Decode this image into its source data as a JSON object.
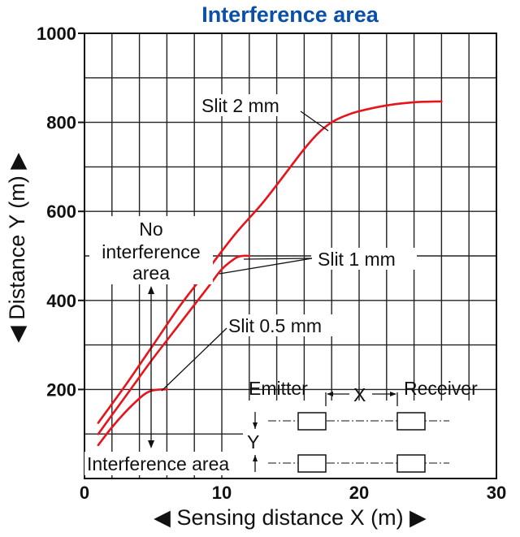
{
  "chart_data": {
    "type": "line",
    "title": "Interference area",
    "xlabel": "◀ Sensing distance X (m) ▶",
    "ylabel": "◀ Distance Y (m) ▶",
    "xlim": [
      0,
      30
    ],
    "ylim": [
      0,
      1000
    ],
    "xticks": [
      0,
      10,
      20,
      30
    ],
    "yticks": [
      200,
      400,
      600,
      800,
      1000
    ],
    "grid": true,
    "series": [
      {
        "name": "Slit 2 mm",
        "x": [
          1,
          3,
          5,
          7,
          9,
          11,
          13,
          15,
          16,
          17,
          18,
          19,
          20,
          22,
          24,
          26
        ],
        "y": [
          125,
          210,
          300,
          390,
          470,
          550,
          620,
          700,
          740,
          775,
          800,
          815,
          825,
          838,
          845,
          847
        ]
      },
      {
        "name": "Slit 1 mm",
        "x": [
          1,
          3,
          5,
          7,
          9,
          10,
          11,
          11.5,
          12
        ],
        "y": [
          100,
          185,
          270,
          350,
          430,
          470,
          495,
          500,
          500
        ]
      },
      {
        "name": "Slit 0.5 mm",
        "x": [
          1,
          2,
          3,
          4,
          4.5,
          5,
          5.5,
          6
        ],
        "y": [
          75,
          115,
          150,
          180,
          192,
          198,
          200,
          200
        ]
      }
    ],
    "annotations": {
      "no_interference": [
        "No",
        "interference",
        "area"
      ],
      "interference": "Interference area",
      "inset": {
        "emitter": "Emitter",
        "receiver": "Receiver",
        "x": "X",
        "y": "Y"
      }
    }
  },
  "colors": {
    "series": "#e8141c",
    "title": "#0a4fa8",
    "grid": "#222222"
  }
}
